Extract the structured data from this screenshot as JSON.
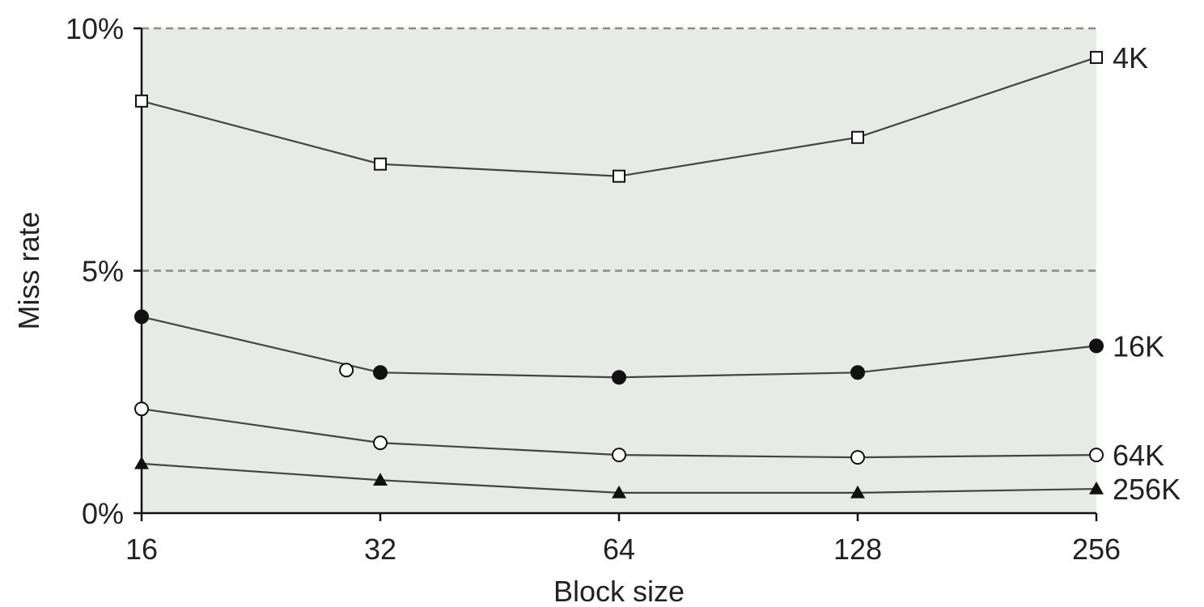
{
  "chart_data": {
    "type": "line",
    "x_categories": [
      "16",
      "32",
      "64",
      "128",
      "256"
    ],
    "xlabel": "Block size",
    "ylabel": "Miss rate",
    "y_range": [
      0,
      10
    ],
    "y_ticks": [
      {
        "value": 0,
        "label": "0%"
      },
      {
        "value": 5,
        "label": "5%"
      },
      {
        "value": 10,
        "label": "10%"
      }
    ],
    "grid": "horizontal dashed at 5% and 10%",
    "colors": {
      "plot_background": "#e8eae8",
      "line": "#444444",
      "grid": "#8a8a8a",
      "axis": "#111111"
    },
    "series": [
      {
        "name": "4K",
        "marker": "open-square",
        "values": [
          8.5,
          7.2,
          6.95,
          7.75,
          9.4
        ]
      },
      {
        "name": "16K",
        "marker": "filled-circle",
        "values": [
          4.05,
          2.9,
          2.8,
          2.9,
          3.45
        ]
      },
      {
        "name": "64K",
        "marker": "open-circle",
        "values": [
          2.15,
          1.45,
          1.2,
          1.15,
          1.2
        ]
      },
      {
        "name": "256K",
        "marker": "filled-triangle",
        "values": [
          1.02,
          0.68,
          0.42,
          0.42,
          0.5
        ]
      }
    ],
    "extra_markers": [
      {
        "marker": "open-circle",
        "x_position": 29.0,
        "value": 2.95
      }
    ]
  }
}
